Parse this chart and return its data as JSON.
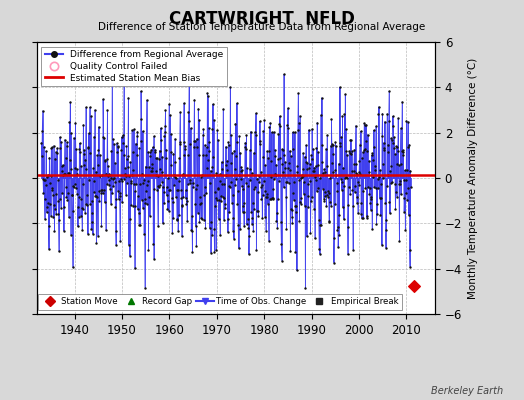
{
  "title": "CARTWRIGHT  NFLD",
  "subtitle": "Difference of Station Temperature Data from Regional Average",
  "ylabel": "Monthly Temperature Anomaly Difference (°C)",
  "ylim": [
    -6,
    6
  ],
  "xlim": [
    1932,
    2016
  ],
  "yticks": [
    -6,
    -4,
    -2,
    0,
    2,
    4,
    6
  ],
  "xticks": [
    1940,
    1950,
    1960,
    1970,
    1980,
    1990,
    2000,
    2010
  ],
  "mean_bias": 0.12,
  "line_color": "#4040ee",
  "fill_color": "#aaaaee",
  "dot_color": "#111111",
  "bias_color": "#dd0000",
  "station_move_x": 2011.5,
  "station_move_y": -4.75,
  "background_color": "#d8d8d8",
  "plot_bg_color": "#ffffff",
  "watermark": "Berkeley Earth",
  "seed": 42,
  "n_months": 936,
  "start_year": 1933.0
}
